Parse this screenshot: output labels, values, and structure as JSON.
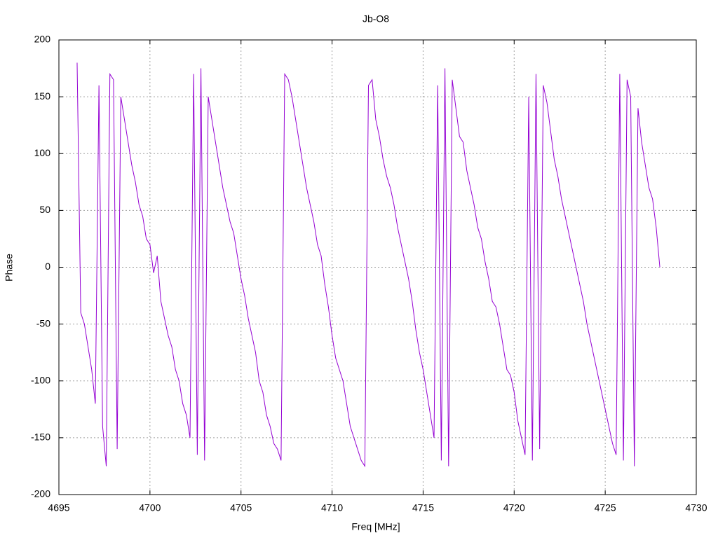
{
  "chart_data": {
    "type": "line",
    "title": "Jb-O8",
    "xlabel": "Freq [MHz]",
    "ylabel": "Phase",
    "color": "#9400d3",
    "grid": true,
    "xlim": [
      4695,
      4730
    ],
    "xticks": [
      4695,
      4700,
      4705,
      4710,
      4715,
      4720,
      4725,
      4730
    ],
    "ylim": [
      -200,
      200
    ],
    "yticks": [
      -200,
      -150,
      -100,
      -50,
      0,
      50,
      100,
      150,
      200
    ],
    "x": [
      4696.0,
      4696.2,
      4696.4,
      4696.6,
      4696.8,
      4697.0,
      4697.2,
      4697.4,
      4697.6,
      4697.8,
      4698.0,
      4698.2,
      4698.4,
      4698.6,
      4698.8,
      4699.0,
      4699.2,
      4699.4,
      4699.6,
      4699.8,
      4700.0,
      4700.2,
      4700.4,
      4700.6,
      4700.8,
      4701.0,
      4701.2,
      4701.4,
      4701.6,
      4701.8,
      4702.0,
      4702.2,
      4702.4,
      4702.6,
      4702.8,
      4703.0,
      4703.2,
      4703.4,
      4703.6,
      4703.8,
      4704.0,
      4704.2,
      4704.4,
      4704.6,
      4704.8,
      4705.0,
      4705.2,
      4705.4,
      4705.6,
      4705.8,
      4706.0,
      4706.2,
      4706.4,
      4706.6,
      4706.8,
      4707.0,
      4707.2,
      4707.4,
      4707.6,
      4707.8,
      4708.0,
      4708.2,
      4708.4,
      4708.6,
      4708.8,
      4709.0,
      4709.2,
      4709.4,
      4709.6,
      4709.8,
      4710.0,
      4710.2,
      4710.4,
      4710.6,
      4710.8,
      4711.0,
      4711.2,
      4711.4,
      4711.6,
      4711.8,
      4712.0,
      4712.2,
      4712.4,
      4712.6,
      4712.8,
      4713.0,
      4713.2,
      4713.4,
      4713.6,
      4713.8,
      4714.0,
      4714.2,
      4714.4,
      4714.6,
      4714.8,
      4715.0,
      4715.2,
      4715.4,
      4715.6,
      4715.8,
      4716.0,
      4716.2,
      4716.4,
      4716.6,
      4716.8,
      4717.0,
      4717.2,
      4717.4,
      4717.6,
      4717.8,
      4718.0,
      4718.2,
      4718.4,
      4718.6,
      4718.8,
      4719.0,
      4719.2,
      4719.4,
      4719.6,
      4719.8,
      4720.0,
      4720.2,
      4720.4,
      4720.6,
      4720.8,
      4721.0,
      4721.2,
      4721.4,
      4721.6,
      4721.8,
      4722.0,
      4722.2,
      4722.4,
      4722.6,
      4722.8,
      4723.0,
      4723.2,
      4723.4,
      4723.6,
      4723.8,
      4724.0,
      4724.2,
      4724.4,
      4724.6,
      4724.8,
      4725.0,
      4725.2,
      4725.4,
      4725.6,
      4725.8,
      4726.0,
      4726.2,
      4726.4,
      4726.6,
      4726.8,
      4727.0,
      4727.2,
      4727.4,
      4727.6,
      4727.8,
      4728.0
    ],
    "values": [
      180,
      -40,
      -50,
      -70,
      -90,
      -120,
      160,
      -140,
      -175,
      170,
      165,
      -160,
      150,
      130,
      110,
      90,
      75,
      55,
      45,
      25,
      20,
      -5,
      10,
      -30,
      -45,
      -60,
      -70,
      -90,
      -100,
      -120,
      -130,
      -150,
      170,
      -165,
      175,
      -170,
      150,
      130,
      110,
      90,
      70,
      55,
      40,
      30,
      10,
      -10,
      -25,
      -45,
      -60,
      -75,
      -100,
      -110,
      -130,
      -140,
      -155,
      -160,
      -170,
      170,
      165,
      150,
      130,
      110,
      90,
      70,
      55,
      40,
      20,
      10,
      -15,
      -35,
      -60,
      -80,
      -90,
      -100,
      -120,
      -140,
      -150,
      -160,
      -170,
      -175,
      160,
      165,
      130,
      115,
      95,
      80,
      70,
      55,
      35,
      20,
      5,
      -10,
      -30,
      -55,
      -75,
      -90,
      -110,
      -130,
      -150,
      160,
      -170,
      175,
      -175,
      165,
      140,
      115,
      110,
      85,
      70,
      55,
      35,
      25,
      5,
      -10,
      -30,
      -35,
      -50,
      -70,
      -90,
      -95,
      -110,
      -135,
      -150,
      -165,
      150,
      -170,
      170,
      -160,
      160,
      145,
      120,
      95,
      80,
      60,
      45,
      30,
      15,
      0,
      -15,
      -30,
      -50,
      -65,
      -80,
      -95,
      -110,
      -125,
      -140,
      -155,
      -165,
      170,
      -170,
      165,
      150,
      -175,
      140,
      110,
      90,
      70,
      60,
      35,
      0
    ]
  }
}
